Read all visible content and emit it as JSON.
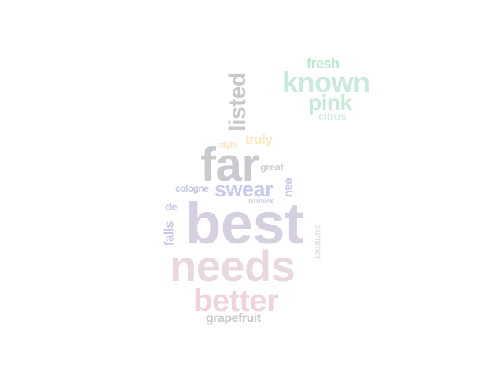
{
  "words": {
    "best": {
      "text": "best",
      "color": "#d6cfe0"
    },
    "needs": {
      "text": "needs",
      "color": "#ead8e0"
    },
    "far": {
      "text": "far",
      "color": "#c9c9cf"
    },
    "better": {
      "text": "better",
      "color": "#efd3dd"
    },
    "known": {
      "text": "known",
      "color": "#c9ebde"
    },
    "pink": {
      "text": "pink",
      "color": "#c5ead9"
    },
    "listed": {
      "text": "listed",
      "color": "#c9c9c9"
    },
    "swear": {
      "text": "swear",
      "color": "#c7c9ee"
    },
    "fresh": {
      "text": "fresh",
      "color": "#b9e8cf"
    },
    "citrus": {
      "text": "citrus",
      "color": "#d1ece0"
    },
    "truly": {
      "text": "truly",
      "color": "#fbe7b9"
    },
    "style": {
      "text": "style",
      "color": "#fde4be"
    },
    "great": {
      "text": "great",
      "color": "#cfcfd8"
    },
    "cologne": {
      "text": "cologne",
      "color": "#c5c7e0"
    },
    "eau": {
      "text": "eau",
      "color": "#c5c7e6"
    },
    "unisex": {
      "text": "unisex",
      "color": "#cfd0e8"
    },
    "de": {
      "text": "de",
      "color": "#c8cae6"
    },
    "falls": {
      "text": "falls",
      "color": "#c6c8e4"
    },
    "summer": {
      "text": "summer",
      "color": "#e3e3ea"
    },
    "grapefruit": {
      "text": "grapefruit",
      "color": "#c9c9cc"
    }
  }
}
